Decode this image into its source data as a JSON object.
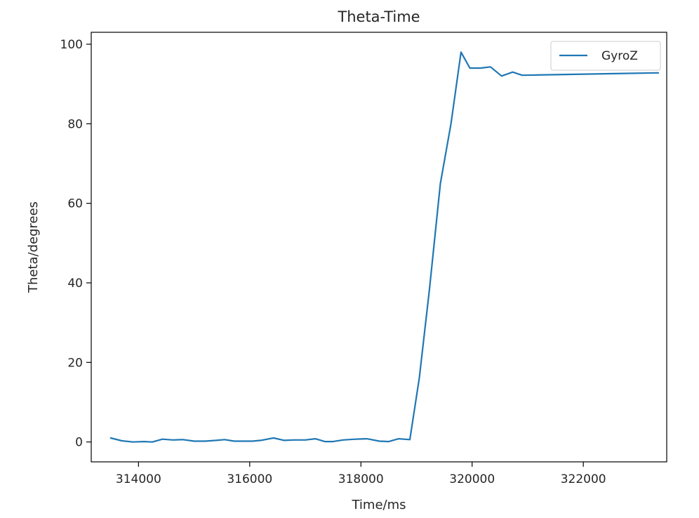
{
  "chart_data": {
    "type": "line",
    "title": "Theta-Time",
    "xlabel": "Time/ms",
    "ylabel": "Theta/degrees",
    "xlim": [
      313150,
      323500
    ],
    "ylim": [
      -5,
      103
    ],
    "xticks": [
      314000,
      316000,
      318000,
      320000,
      322000
    ],
    "xtick_labels": [
      "314000",
      "316000",
      "318000",
      "320000",
      "322000"
    ],
    "yticks": [
      0,
      20,
      40,
      60,
      80,
      100
    ],
    "ytick_labels": [
      "0",
      "20",
      "40",
      "60",
      "80",
      "100"
    ],
    "grid": false,
    "legend_position": "top-right",
    "colors": {
      "series": "#1f77b4",
      "axes": "#000000",
      "background": "#ffffff"
    },
    "series": [
      {
        "name": "GyroZ",
        "x": [
          313500,
          313700,
          313900,
          314100,
          314250,
          314430,
          314620,
          314800,
          315000,
          315200,
          315400,
          315550,
          315720,
          315900,
          316050,
          316200,
          316430,
          316620,
          316800,
          317000,
          317180,
          317350,
          317500,
          317680,
          317900,
          318100,
          318150,
          318330,
          318500,
          318680,
          318880,
          319050,
          319230,
          319430,
          319620,
          319800,
          319960,
          320150,
          320330,
          320530,
          320730,
          320900,
          323350
        ],
        "y": [
          1.0,
          0.3,
          0.0,
          0.1,
          0.0,
          0.7,
          0.5,
          0.6,
          0.2,
          0.2,
          0.4,
          0.6,
          0.2,
          0.2,
          0.2,
          0.4,
          1.0,
          0.4,
          0.5,
          0.5,
          0.8,
          0.1,
          0.1,
          0.5,
          0.7,
          0.8,
          0.7,
          0.2,
          0.1,
          0.8,
          0.6,
          16.0,
          38.0,
          65.0,
          80.0,
          98.0,
          94.0,
          94.0,
          94.3,
          92.0,
          93.0,
          92.2,
          92.8
        ]
      }
    ]
  }
}
